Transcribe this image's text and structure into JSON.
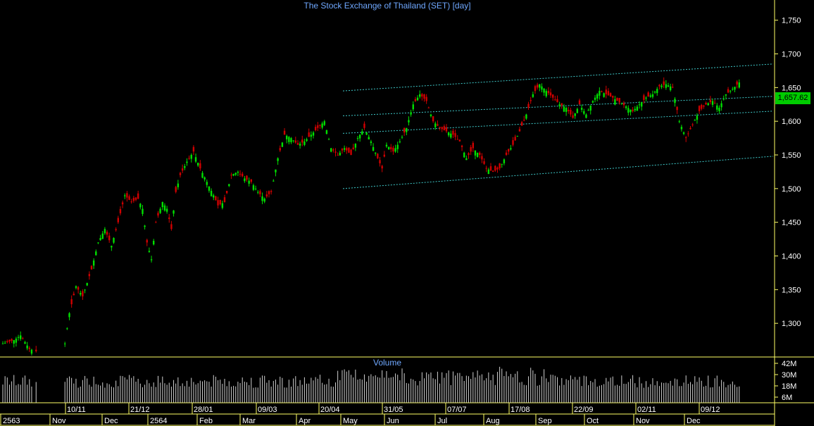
{
  "chart_data": {
    "type": "candlestick",
    "title": "The Stock Exchange of Thailand (SET) [day]",
    "last_price": "1,657.62",
    "y_range": [
      1250,
      1780
    ],
    "y_ticks": [
      "1,750",
      "1,700",
      "1,650",
      "1,600",
      "1,550",
      "1,500",
      "1,450",
      "1,400",
      "1,350",
      "1,300"
    ],
    "y_tick_values": [
      1750,
      1700,
      1650,
      1600,
      1550,
      1500,
      1450,
      1400,
      1350,
      1300
    ],
    "date_labels_top": [
      "10/11",
      "21/12",
      "28/01",
      "09/03",
      "20/04",
      "31/05",
      "07/07",
      "17/08",
      "22/09",
      "02/11",
      "09/12"
    ],
    "month_labels": [
      "2563",
      "Nov",
      "Dec",
      "2564",
      "Feb",
      "Mar",
      "Apr",
      "May",
      "Jun",
      "Jul",
      "Aug",
      "Sep",
      "Oct",
      "Nov",
      "Dec"
    ],
    "volume": {
      "title": "Volume",
      "ticks": [
        "42M",
        "30M",
        "18M",
        "6M"
      ],
      "tick_values": [
        42,
        30,
        18,
        6
      ],
      "range": [
        0,
        48
      ]
    },
    "close_path": [
      [
        0,
        1270
      ],
      [
        5,
        1275
      ],
      [
        8,
        1282
      ],
      [
        12,
        1262
      ],
      [
        18,
        1255
      ],
      [
        22,
        1255
      ],
      [
        26,
        1265
      ],
      [
        28,
        1270
      ],
      [
        30,
        1315
      ],
      [
        33,
        1355
      ],
      [
        36,
        1340
      ],
      [
        40,
        1380
      ],
      [
        43,
        1420
      ],
      [
        46,
        1440
      ],
      [
        49,
        1415
      ],
      [
        52,
        1450
      ],
      [
        55,
        1490
      ],
      [
        58,
        1480
      ],
      [
        61,
        1485
      ],
      [
        63,
        1470
      ],
      [
        65,
        1420
      ],
      [
        67,
        1395
      ],
      [
        69,
        1450
      ],
      [
        72,
        1480
      ],
      [
        74,
        1470
      ],
      [
        76,
        1440
      ],
      [
        78,
        1495
      ],
      [
        80,
        1520
      ],
      [
        83,
        1540
      ],
      [
        86,
        1555
      ],
      [
        89,
        1530
      ],
      [
        92,
        1510
      ],
      [
        95,
        1490
      ],
      [
        97,
        1475
      ],
      [
        100,
        1480
      ],
      [
        103,
        1520
      ],
      [
        106,
        1525
      ],
      [
        109,
        1515
      ],
      [
        112,
        1510
      ],
      [
        115,
        1495
      ],
      [
        118,
        1485
      ],
      [
        121,
        1495
      ],
      [
        124,
        1545
      ],
      [
        127,
        1580
      ],
      [
        130,
        1575
      ],
      [
        133,
        1565
      ],
      [
        136,
        1570
      ],
      [
        139,
        1580
      ],
      [
        142,
        1590
      ],
      [
        145,
        1600
      ],
      [
        148,
        1560
      ],
      [
        151,
        1550
      ],
      [
        154,
        1560
      ],
      [
        157,
        1550
      ],
      [
        160,
        1575
      ],
      [
        163,
        1590
      ],
      [
        166,
        1570
      ],
      [
        169,
        1545
      ],
      [
        171,
        1530
      ],
      [
        173,
        1565
      ],
      [
        176,
        1555
      ],
      [
        179,
        1570
      ],
      [
        182,
        1590
      ],
      [
        185,
        1625
      ],
      [
        188,
        1640
      ],
      [
        191,
        1630
      ],
      [
        194,
        1600
      ],
      [
        197,
        1590
      ],
      [
        200,
        1585
      ],
      [
        203,
        1580
      ],
      [
        206,
        1570
      ],
      [
        209,
        1545
      ],
      [
        212,
        1560
      ],
      [
        215,
        1550
      ],
      [
        218,
        1530
      ],
      [
        221,
        1525
      ],
      [
        224,
        1530
      ],
      [
        227,
        1550
      ],
      [
        230,
        1565
      ],
      [
        233,
        1585
      ],
      [
        236,
        1610
      ],
      [
        239,
        1640
      ],
      [
        242,
        1655
      ],
      [
        245,
        1645
      ],
      [
        248,
        1635
      ],
      [
        251,
        1625
      ],
      [
        254,
        1620
      ],
      [
        257,
        1605
      ],
      [
        260,
        1625
      ],
      [
        263,
        1610
      ],
      [
        266,
        1630
      ],
      [
        269,
        1645
      ],
      [
        272,
        1640
      ],
      [
        275,
        1635
      ],
      [
        278,
        1628
      ],
      [
        281,
        1622
      ],
      [
        284,
        1615
      ],
      [
        287,
        1625
      ],
      [
        290,
        1635
      ],
      [
        293,
        1640
      ],
      [
        296,
        1652
      ],
      [
        299,
        1655
      ],
      [
        302,
        1650
      ],
      [
        305,
        1600
      ],
      [
        308,
        1575
      ],
      [
        311,
        1595
      ],
      [
        314,
        1615
      ],
      [
        317,
        1625
      ],
      [
        320,
        1630
      ],
      [
        323,
        1620
      ],
      [
        326,
        1640
      ],
      [
        329,
        1648
      ],
      [
        332,
        1657.62
      ]
    ],
    "trend_lines": [
      {
        "from": [
          0,
          1500
        ],
        "to": [
          1,
          1548
        ]
      },
      {
        "from": [
          0,
          1582
        ],
        "to": [
          1,
          1615
        ]
      },
      {
        "from": [
          0,
          1608
        ],
        "to": [
          1,
          1637
        ]
      },
      {
        "from": [
          0,
          1645
        ],
        "to": [
          1,
          1685
        ]
      }
    ],
    "colors": {
      "up": "#00e000",
      "down": "#d00000",
      "axis": "#ffff66",
      "label": "#ffffff",
      "trend": "#3ec8c8",
      "volume": "#cfcfcf",
      "title": "#6fa8ff"
    }
  }
}
